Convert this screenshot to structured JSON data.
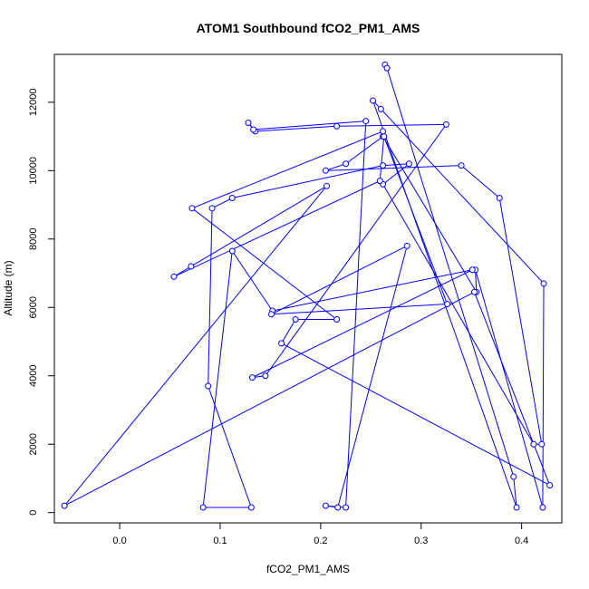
{
  "chart_data": {
    "type": "line",
    "title": "ATOM1 Southbound fCO2_PM1_AMS",
    "xlabel": "fCO2_PM1_AMS",
    "ylabel": "Altitude (m)",
    "xlim": [
      -0.065,
      0.44
    ],
    "ylim": [
      -300,
      13400
    ],
    "x_ticks": [
      0.0,
      0.1,
      0.2,
      0.3,
      0.4
    ],
    "x_tick_labels": [
      "0.0",
      "0.1",
      "0.2",
      "0.3",
      "0.4"
    ],
    "y_ticks": [
      0,
      2000,
      4000,
      6000,
      8000,
      10000,
      12000
    ],
    "y_tick_labels": [
      "0",
      "2000",
      "4000",
      "6000",
      "8000",
      "10000",
      "12000"
    ],
    "grid": false,
    "color": "#0000ff",
    "marker": "open-circle",
    "series": [
      {
        "x": [
          0.264,
          0.266,
          0.392,
          0.395,
          0.252,
          0.26,
          0.422,
          0.421,
          0.354,
          0.355,
          0.262,
          0.225,
          0.205,
          0.34,
          0.378,
          0.42,
          0.412,
          0.262,
          0.288,
          0.262,
          0.112,
          0.092,
          0.088,
          0.131,
          0.083,
          0.112,
          0.152,
          0.351,
          0.132,
          0.145,
          0.325,
          0.216,
          0.135,
          0.128,
          0.133,
          0.245,
          0.225,
          0.205,
          0.217,
          0.286,
          0.151,
          0.326,
          0.263,
          0.259,
          0.054,
          0.071,
          0.206,
          -0.055,
          0.353,
          0.428,
          0.161,
          0.175,
          0.216,
          0.072,
          0.262
        ],
        "y": [
          13100,
          13000,
          1050,
          150,
          12050,
          11800,
          6700,
          150,
          7100,
          6450,
          11000,
          10200,
          10000,
          10150,
          9200,
          2000,
          2000,
          9600,
          10200,
          10150,
          9200,
          8900,
          3700,
          150,
          150,
          7650,
          5900,
          7100,
          3950,
          4000,
          11350,
          11300,
          11150,
          11400,
          11200,
          11450,
          150,
          200,
          150,
          7800,
          5800,
          6100,
          11000,
          9700,
          6900,
          7200,
          9550,
          200,
          6450,
          800,
          4950,
          5650,
          5650,
          8900,
          11150
        ]
      }
    ]
  }
}
